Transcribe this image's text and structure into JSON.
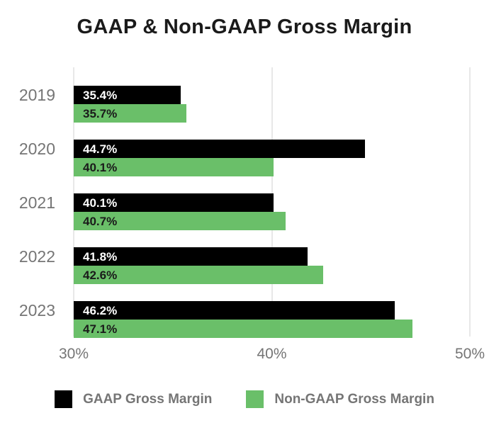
{
  "chart_data": {
    "type": "bar",
    "orientation": "horizontal",
    "title": "GAAP & Non-GAAP Gross Margin",
    "categories": [
      "2019",
      "2020",
      "2021",
      "2022",
      "2023"
    ],
    "series": [
      {
        "name": "GAAP Gross Margin",
        "color": "#000000",
        "label_color": "#ffffff",
        "values": [
          35.4,
          44.7,
          40.1,
          41.8,
          46.2
        ]
      },
      {
        "name": "Non-GAAP Gross Margin",
        "color": "#6abf69",
        "label_color": "#1a1a1a",
        "values": [
          35.7,
          40.1,
          40.7,
          42.6,
          47.1
        ]
      }
    ],
    "value_suffix": "%",
    "xlim": [
      30,
      50
    ],
    "x_ticks": [
      {
        "value": 30,
        "label": "30%"
      },
      {
        "value": 40,
        "label": "40%"
      },
      {
        "value": 50,
        "label": "50%"
      }
    ],
    "grid": true,
    "legend_position": "bottom",
    "colors": {
      "grid_line": "#e8e8e8",
      "axis_text": "#757575",
      "year_text": "#757575",
      "title_text": "#1a1a1a"
    }
  }
}
